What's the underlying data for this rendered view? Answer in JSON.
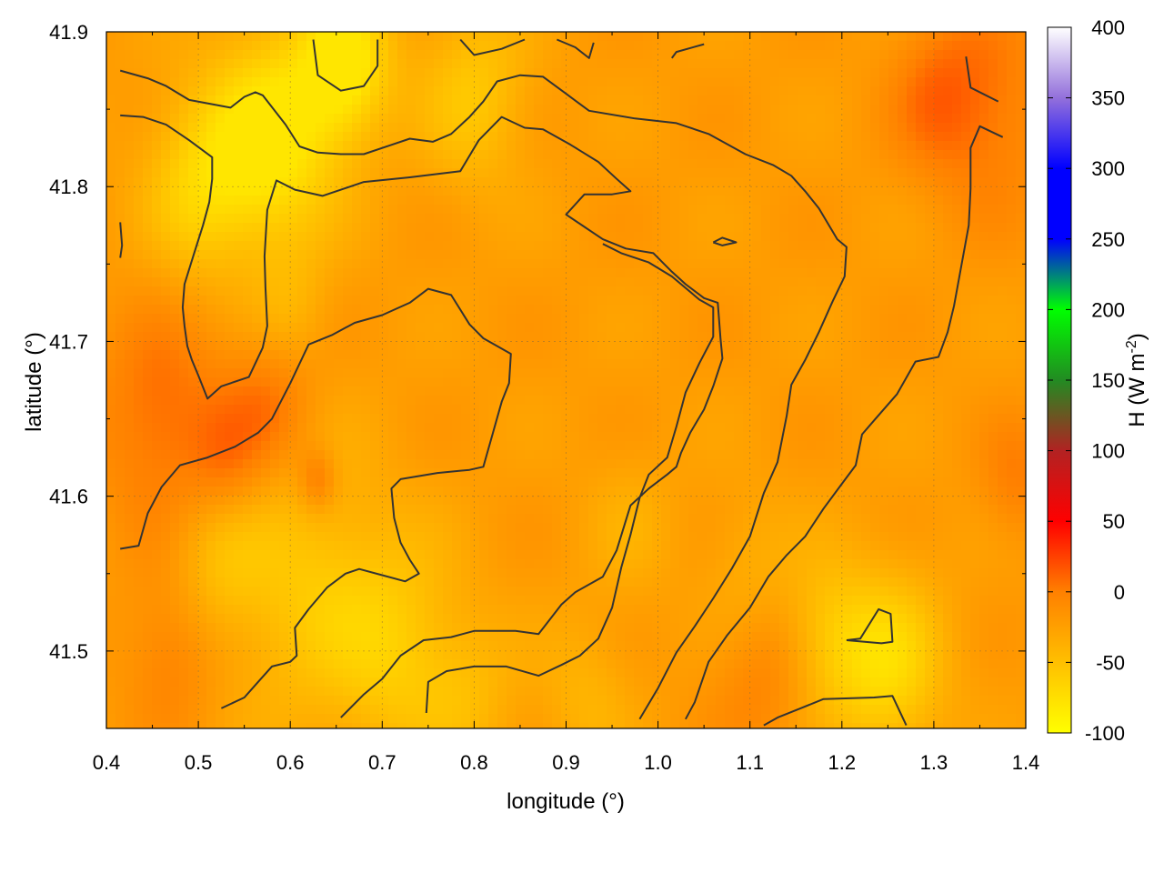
{
  "chart_data": {
    "type": "heatmap",
    "title": "",
    "xlabel": "longitude (°)",
    "ylabel": "latitude (°)",
    "colorbar_label": "H (W m",
    "colorbar_label_sup": "-2",
    "colorbar_label_end": ")",
    "xlim": [
      0.4,
      1.4
    ],
    "ylim": [
      41.45,
      41.9
    ],
    "zlim": [
      -100,
      400
    ],
    "x_ticks": [
      "0.4",
      "0.5",
      "0.6",
      "0.7",
      "0.8",
      "0.9",
      "1.0",
      "1.1",
      "1.2",
      "1.3",
      "1.4"
    ],
    "y_ticks": [
      "41.5",
      "41.6",
      "41.7",
      "41.8",
      "41.9"
    ],
    "colorbar_ticks": [
      "-100",
      "-50",
      "0",
      "50",
      "100",
      "150",
      "200",
      "250",
      "300",
      "350",
      "400"
    ],
    "grid": true,
    "colormap": [
      {
        "v": -100,
        "c": "#ffff00"
      },
      {
        "v": 0,
        "c": "#ff8000"
      },
      {
        "v": 50,
        "c": "#ff0000"
      },
      {
        "v": 100,
        "c": "#b22222"
      },
      {
        "v": 150,
        "c": "#228b22"
      },
      {
        "v": 200,
        "c": "#00ff00"
      },
      {
        "v": 250,
        "c": "#0000ff"
      },
      {
        "v": 300,
        "c": "#0000ff"
      },
      {
        "v": 350,
        "c": "#9370db"
      },
      {
        "v": 400,
        "c": "#ffffff"
      }
    ],
    "field_range_approx": [
      -80,
      30
    ],
    "contour_color": "#333333",
    "contours": [
      [
        [
          0.415,
          41.875
        ],
        [
          0.445,
          41.87
        ],
        [
          0.465,
          41.865
        ],
        [
          0.49,
          41.856
        ],
        [
          0.535,
          41.851
        ],
        [
          0.55,
          41.858
        ],
        [
          0.562,
          41.861
        ],
        [
          0.57,
          41.859
        ],
        [
          0.595,
          41.84
        ],
        [
          0.61,
          41.826
        ],
        [
          0.63,
          41.822
        ],
        [
          0.655,
          41.821
        ],
        [
          0.68,
          41.821
        ],
        [
          0.71,
          41.827
        ],
        [
          0.73,
          41.831
        ],
        [
          0.755,
          41.829
        ],
        [
          0.775,
          41.834
        ],
        [
          0.795,
          41.845
        ],
        [
          0.81,
          41.855
        ],
        [
          0.825,
          41.868
        ],
        [
          0.85,
          41.872
        ],
        [
          0.875,
          41.871
        ],
        [
          0.9,
          41.86
        ],
        [
          0.925,
          41.849
        ],
        [
          0.975,
          41.844
        ],
        [
          1.02,
          41.841
        ],
        [
          1.055,
          41.834
        ],
        [
          1.095,
          41.821
        ],
        [
          1.125,
          41.814
        ],
        [
          1.145,
          41.807
        ],
        [
          1.16,
          41.797
        ],
        [
          1.175,
          41.786
        ],
        [
          1.195,
          41.766
        ],
        [
          1.205,
          41.761
        ],
        [
          1.203,
          41.742
        ],
        [
          1.19,
          41.726
        ],
        [
          1.175,
          41.706
        ],
        [
          1.16,
          41.688
        ],
        [
          1.145,
          41.672
        ],
        [
          1.14,
          41.652
        ],
        [
          1.13,
          41.622
        ],
        [
          1.115,
          41.602
        ],
        [
          1.1,
          41.574
        ],
        [
          1.08,
          41.553
        ],
        [
          1.06,
          41.534
        ],
        [
          1.04,
          41.516
        ],
        [
          1.02,
          41.499
        ],
        [
          1.0,
          41.476
        ],
        [
          0.98,
          41.456
        ]
      ],
      [
        [
          0.415,
          41.846
        ],
        [
          0.44,
          41.845
        ],
        [
          0.465,
          41.84
        ],
        [
          0.49,
          41.83
        ],
        [
          0.515,
          41.819
        ],
        [
          0.515,
          41.805
        ],
        [
          0.512,
          41.79
        ],
        [
          0.505,
          41.775
        ],
        [
          0.495,
          41.756
        ],
        [
          0.485,
          41.737
        ],
        [
          0.483,
          41.722
        ],
        [
          0.485,
          41.71
        ],
        [
          0.488,
          41.697
        ],
        [
          0.493,
          41.688
        ],
        [
          0.5,
          41.678
        ],
        [
          0.51,
          41.663
        ],
        [
          0.525,
          41.671
        ],
        [
          0.555,
          41.677
        ],
        [
          0.57,
          41.696
        ],
        [
          0.575,
          41.71
        ],
        [
          0.573,
          41.735
        ],
        [
          0.572,
          41.755
        ],
        [
          0.575,
          41.785
        ],
        [
          0.585,
          41.804
        ],
        [
          0.605,
          41.798
        ],
        [
          0.635,
          41.794
        ],
        [
          0.68,
          41.803
        ],
        [
          0.73,
          41.806
        ],
        [
          0.785,
          41.81
        ],
        [
          0.805,
          41.83
        ],
        [
          0.83,
          41.845
        ],
        [
          0.855,
          41.838
        ],
        [
          0.875,
          41.837
        ],
        [
          0.905,
          41.827
        ],
        [
          0.935,
          41.816
        ],
        [
          0.955,
          41.805
        ],
        [
          0.97,
          41.797
        ],
        [
          0.95,
          41.795
        ],
        [
          0.92,
          41.795
        ],
        [
          0.9,
          41.782
        ],
        [
          0.92,
          41.774
        ],
        [
          0.94,
          41.766
        ],
        [
          0.965,
          41.76
        ],
        [
          0.995,
          41.757
        ],
        [
          1.015,
          41.745
        ],
        [
          1.03,
          41.737
        ],
        [
          1.05,
          41.728
        ],
        [
          1.065,
          41.725
        ],
        [
          1.068,
          41.702
        ],
        [
          1.07,
          41.689
        ],
        [
          1.06,
          41.671
        ],
        [
          1.05,
          41.656
        ],
        [
          1.035,
          41.641
        ],
        [
          1.025,
          41.628
        ],
        [
          1.02,
          41.619
        ],
        [
          1.01,
          41.614
        ],
        [
          0.99,
          41.605
        ],
        [
          0.97,
          41.594
        ],
        [
          0.955,
          41.565
        ],
        [
          0.94,
          41.548
        ],
        [
          0.91,
          41.538
        ],
        [
          0.895,
          41.53
        ],
        [
          0.87,
          41.511
        ],
        [
          0.845,
          41.513
        ],
        [
          0.8,
          41.513
        ],
        [
          0.775,
          41.509
        ],
        [
          0.745,
          41.507
        ],
        [
          0.72,
          41.497
        ],
        [
          0.7,
          41.482
        ],
        [
          0.68,
          41.472
        ],
        [
          0.655,
          41.457
        ]
      ],
      [
        [
          0.415,
          41.566
        ],
        [
          0.435,
          41.568
        ],
        [
          0.445,
          41.589
        ],
        [
          0.46,
          41.606
        ],
        [
          0.48,
          41.62
        ],
        [
          0.51,
          41.625
        ],
        [
          0.54,
          41.632
        ],
        [
          0.565,
          41.641
        ],
        [
          0.58,
          41.65
        ],
        [
          0.6,
          41.673
        ],
        [
          0.62,
          41.698
        ],
        [
          0.645,
          41.704
        ],
        [
          0.67,
          41.712
        ],
        [
          0.7,
          41.717
        ],
        [
          0.73,
          41.725
        ],
        [
          0.75,
          41.734
        ],
        [
          0.775,
          41.73
        ],
        [
          0.795,
          41.711
        ],
        [
          0.81,
          41.702
        ],
        [
          0.84,
          41.692
        ],
        [
          0.838,
          41.673
        ],
        [
          0.83,
          41.661
        ],
        [
          0.82,
          41.64
        ],
        [
          0.81,
          41.619
        ],
        [
          0.795,
          41.617
        ],
        [
          0.76,
          41.615
        ],
        [
          0.72,
          41.611
        ],
        [
          0.71,
          41.605
        ],
        [
          0.713,
          41.586
        ],
        [
          0.72,
          41.57
        ],
        [
          0.73,
          41.559
        ],
        [
          0.74,
          41.55
        ],
        [
          0.725,
          41.545
        ],
        [
          0.7,
          41.549
        ],
        [
          0.675,
          41.553
        ],
        [
          0.66,
          41.55
        ],
        [
          0.64,
          41.541
        ],
        [
          0.62,
          41.527
        ],
        [
          0.605,
          41.515
        ],
        [
          0.607,
          41.497
        ],
        [
          0.6,
          41.493
        ],
        [
          0.58,
          41.49
        ],
        [
          0.565,
          41.48
        ],
        [
          0.55,
          41.47
        ],
        [
          0.525,
          41.463
        ]
      ],
      [
        [
          0.748,
          41.46
        ],
        [
          0.75,
          41.48
        ],
        [
          0.77,
          41.487
        ],
        [
          0.8,
          41.49
        ],
        [
          0.835,
          41.49
        ],
        [
          0.87,
          41.484
        ],
        [
          0.895,
          41.491
        ],
        [
          0.915,
          41.497
        ],
        [
          0.935,
          41.508
        ],
        [
          0.95,
          41.528
        ],
        [
          0.96,
          41.554
        ],
        [
          0.97,
          41.575
        ],
        [
          0.98,
          41.599
        ],
        [
          0.99,
          41.614
        ],
        [
          1.01,
          41.625
        ],
        [
          1.02,
          41.645
        ],
        [
          1.03,
          41.667
        ],
        [
          1.045,
          41.686
        ],
        [
          1.06,
          41.703
        ],
        [
          1.06,
          41.722
        ],
        [
          1.045,
          41.727
        ],
        [
          1.015,
          41.742
        ],
        [
          0.99,
          41.751
        ],
        [
          0.96,
          41.757
        ],
        [
          0.94,
          41.763
        ]
      ],
      [
        [
          1.03,
          41.456
        ],
        [
          1.04,
          41.467
        ],
        [
          1.055,
          41.493
        ],
        [
          1.075,
          41.51
        ],
        [
          1.1,
          41.528
        ],
        [
          1.12,
          41.548
        ],
        [
          1.14,
          41.562
        ],
        [
          1.16,
          41.574
        ],
        [
          1.18,
          41.592
        ],
        [
          1.2,
          41.608
        ],
        [
          1.215,
          41.62
        ],
        [
          1.222,
          41.64
        ],
        [
          1.235,
          41.649
        ],
        [
          1.26,
          41.666
        ],
        [
          1.28,
          41.687
        ],
        [
          1.305,
          41.69
        ],
        [
          1.315,
          41.706
        ],
        [
          1.322,
          41.723
        ],
        [
          1.33,
          41.749
        ],
        [
          1.338,
          41.775
        ],
        [
          1.34,
          41.799
        ],
        [
          1.34,
          41.825
        ],
        [
          1.35,
          41.839
        ],
        [
          1.375,
          41.832
        ]
      ],
      [
        [
          0.625,
          41.895
        ],
        [
          0.63,
          41.872
        ],
        [
          0.655,
          41.862
        ],
        [
          0.68,
          41.865
        ],
        [
          0.695,
          41.878
        ],
        [
          0.695,
          41.895
        ]
      ],
      [
        [
          0.785,
          41.895
        ],
        [
          0.8,
          41.885
        ],
        [
          0.83,
          41.889
        ],
        [
          0.855,
          41.895
        ]
      ],
      [
        [
          0.89,
          41.895
        ],
        [
          0.91,
          41.89
        ],
        [
          0.925,
          41.883
        ],
        [
          0.93,
          41.893
        ]
      ],
      [
        [
          1.015,
          41.883
        ],
        [
          1.02,
          41.887
        ],
        [
          1.05,
          41.892
        ]
      ],
      [
        [
          1.335,
          41.884
        ],
        [
          1.34,
          41.864
        ],
        [
          1.37,
          41.855
        ]
      ],
      [
        [
          0.415,
          41.777
        ],
        [
          0.417,
          41.762
        ],
        [
          0.415,
          41.754
        ]
      ],
      [
        [
          1.205,
          41.507
        ],
        [
          1.22,
          41.508
        ],
        [
          1.24,
          41.527
        ],
        [
          1.253,
          41.524
        ],
        [
          1.255,
          41.506
        ],
        [
          1.243,
          41.505
        ],
        [
          1.205,
          41.507
        ]
      ],
      [
        [
          1.06,
          41.764
        ],
        [
          1.07,
          41.767
        ],
        [
          1.085,
          41.764
        ],
        [
          1.07,
          41.762
        ],
        [
          1.06,
          41.764
        ]
      ],
      [
        [
          1.115,
          41.452
        ],
        [
          1.13,
          41.457
        ],
        [
          1.155,
          41.463
        ],
        [
          1.18,
          41.469
        ],
        [
          1.235,
          41.47
        ],
        [
          1.255,
          41.471
        ],
        [
          1.27,
          41.452
        ]
      ]
    ],
    "hot_spots": [
      {
        "x": 0.46,
        "y": 41.65,
        "r": 0.07,
        "v": 10
      },
      {
        "x": 0.58,
        "y": 41.66,
        "r": 0.05,
        "v": 5
      },
      {
        "x": 1.36,
        "y": 41.85,
        "r": 0.07,
        "v": 5
      },
      {
        "x": 1.3,
        "y": 41.86,
        "r": 0.05,
        "v": 0
      },
      {
        "x": 1.12,
        "y": 41.49,
        "r": 0.06,
        "v": 0
      },
      {
        "x": 0.47,
        "y": 41.5,
        "r": 0.05,
        "v": 0
      },
      {
        "x": 0.53,
        "y": 41.62,
        "r": 0.04,
        "v": 0
      },
      {
        "x": 0.63,
        "y": 41.61,
        "r": 0.02,
        "v": 10
      },
      {
        "x": 1.39,
        "y": 41.61,
        "r": 0.04,
        "v": 0
      }
    ],
    "cool_spots": [
      {
        "x": 0.58,
        "y": 41.83,
        "r": 0.07,
        "v": -85
      },
      {
        "x": 0.66,
        "y": 41.88,
        "r": 0.05,
        "v": -85
      },
      {
        "x": 0.5,
        "y": 41.8,
        "r": 0.06,
        "v": -60
      },
      {
        "x": 0.8,
        "y": 41.86,
        "r": 0.06,
        "v": -55
      },
      {
        "x": 0.6,
        "y": 41.72,
        "r": 0.04,
        "v": -40
      },
      {
        "x": 0.62,
        "y": 41.54,
        "r": 0.09,
        "v": -55
      },
      {
        "x": 0.72,
        "y": 41.5,
        "r": 0.07,
        "v": -55
      },
      {
        "x": 0.52,
        "y": 41.56,
        "r": 0.05,
        "v": -45
      },
      {
        "x": 1.25,
        "y": 41.49,
        "r": 0.06,
        "v": -70
      },
      {
        "x": 1.18,
        "y": 41.51,
        "r": 0.05,
        "v": -55
      },
      {
        "x": 1.1,
        "y": 41.55,
        "r": 0.05,
        "v": -40
      },
      {
        "x": 0.97,
        "y": 41.58,
        "r": 0.05,
        "v": -35
      },
      {
        "x": 0.92,
        "y": 41.47,
        "r": 0.05,
        "v": -40
      },
      {
        "x": 0.8,
        "y": 41.47,
        "r": 0.05,
        "v": -40
      }
    ],
    "base_value": -22
  }
}
